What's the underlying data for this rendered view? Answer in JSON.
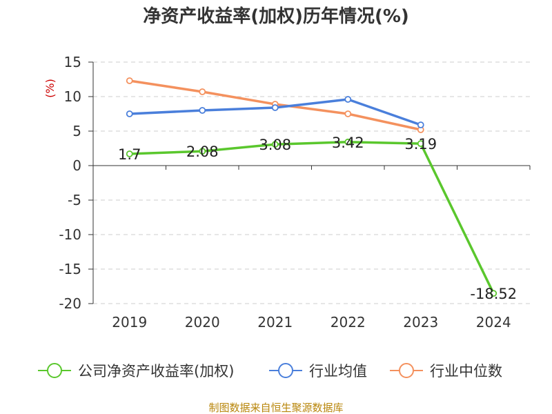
{
  "chart_data": {
    "type": "line",
    "title": "净资产收益率(加权)历年情况(%)",
    "ylabel": "(%)",
    "xlabel": "",
    "categories": [
      "2019",
      "2020",
      "2021",
      "2022",
      "2023",
      "2024"
    ],
    "ylim": [
      -20,
      15
    ],
    "yticks": [
      15,
      10,
      5,
      0,
      -5,
      -10,
      -15,
      -20
    ],
    "grid": true,
    "series": [
      {
        "name": "公司净资产收益率(加权)",
        "color": "#5ac72d",
        "values": [
          1.7,
          2.08,
          3.08,
          3.42,
          3.19,
          -18.52
        ],
        "labels": [
          "1.7",
          "2.08",
          "3.08",
          "3.42",
          "3.19",
          "-18.52"
        ]
      },
      {
        "name": "行业均值",
        "color": "#4a7fdb",
        "values": [
          7.5,
          8.0,
          8.4,
          9.6,
          5.9,
          null
        ]
      },
      {
        "name": "行业中位数",
        "color": "#f4915e",
        "values": [
          12.3,
          10.7,
          8.9,
          7.5,
          5.2,
          null
        ]
      }
    ],
    "legend_position": "bottom",
    "source": "制图数据来自恒生聚源数据库"
  }
}
